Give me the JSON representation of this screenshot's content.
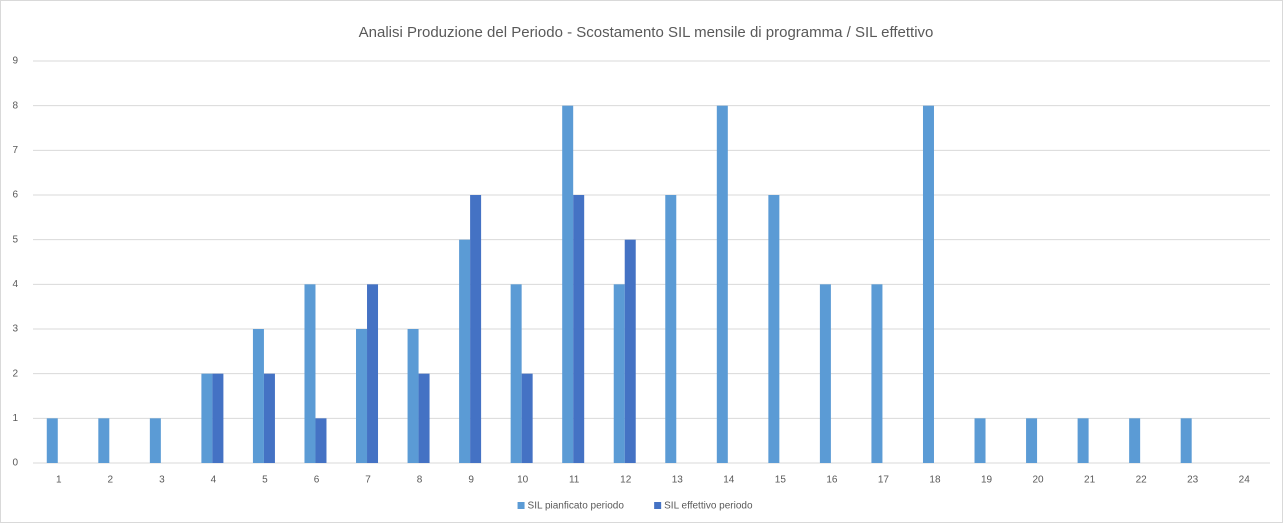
{
  "chart_data": {
    "type": "bar",
    "title": "Analisi Produzione del Periodo - Scostamento SIL mensile di programma / SIL effettivo",
    "categories": [
      "1",
      "2",
      "3",
      "4",
      "5",
      "6",
      "7",
      "8",
      "9",
      "10",
      "11",
      "12",
      "13",
      "14",
      "15",
      "16",
      "17",
      "18",
      "19",
      "20",
      "21",
      "22",
      "23",
      "24"
    ],
    "series": [
      {
        "name": "SIL pianficato periodo",
        "color": "#5b9bd5",
        "values": [
          1,
          1,
          1,
          2,
          3,
          4,
          3,
          3,
          5,
          4,
          8,
          4,
          6,
          8,
          6,
          4,
          4,
          8,
          1,
          1,
          1,
          1,
          1,
          null
        ]
      },
      {
        "name": "SIL effettivo periodo",
        "color": "#4472c4",
        "values": [
          null,
          null,
          null,
          2,
          2,
          1,
          4,
          2,
          6,
          2,
          6,
          5,
          null,
          null,
          null,
          null,
          null,
          null,
          null,
          null,
          null,
          null,
          null,
          null
        ]
      }
    ],
    "ylim": [
      0,
      9
    ],
    "yticks": [
      0,
      1,
      2,
      3,
      4,
      5,
      6,
      7,
      8,
      9
    ],
    "grid": true,
    "legend": "bottom"
  }
}
